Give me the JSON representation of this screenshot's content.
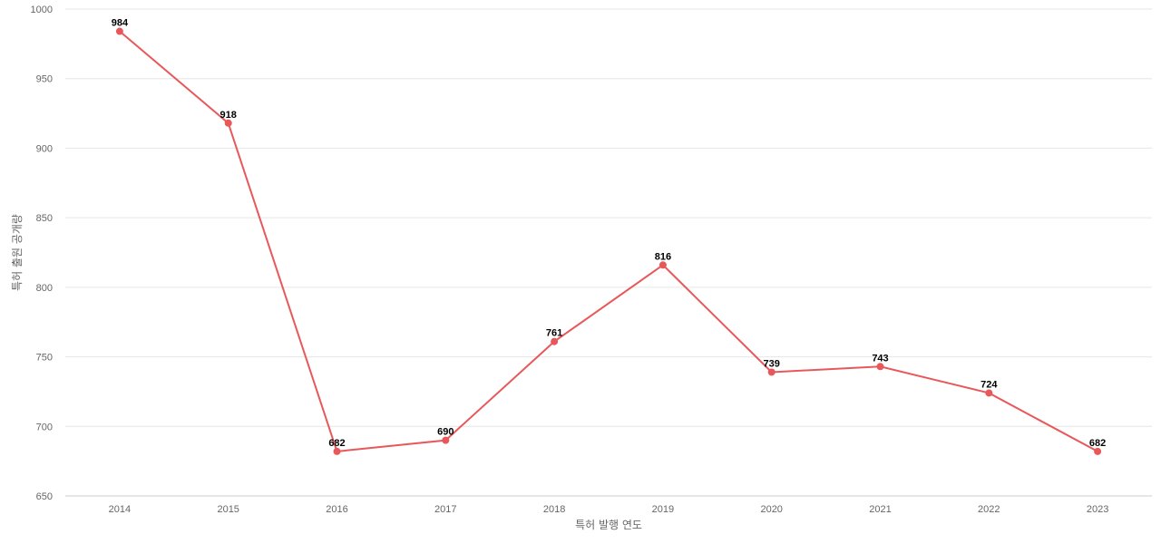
{
  "chart_data": {
    "type": "line",
    "x": [
      "2014",
      "2015",
      "2016",
      "2017",
      "2018",
      "2019",
      "2020",
      "2021",
      "2022",
      "2023"
    ],
    "series": [
      {
        "values": [
          984,
          918,
          682,
          690,
          761,
          816,
          739,
          743,
          724,
          682
        ],
        "color": "#e8585a"
      }
    ],
    "title": "",
    "xlabel": "특허 발행 연도",
    "ylabel": "특허 출원 공개량",
    "ylim": [
      650,
      1000
    ],
    "yticks": [
      650,
      700,
      750,
      800,
      850,
      900,
      950,
      1000
    ],
    "grid": true,
    "data_labels": true
  }
}
